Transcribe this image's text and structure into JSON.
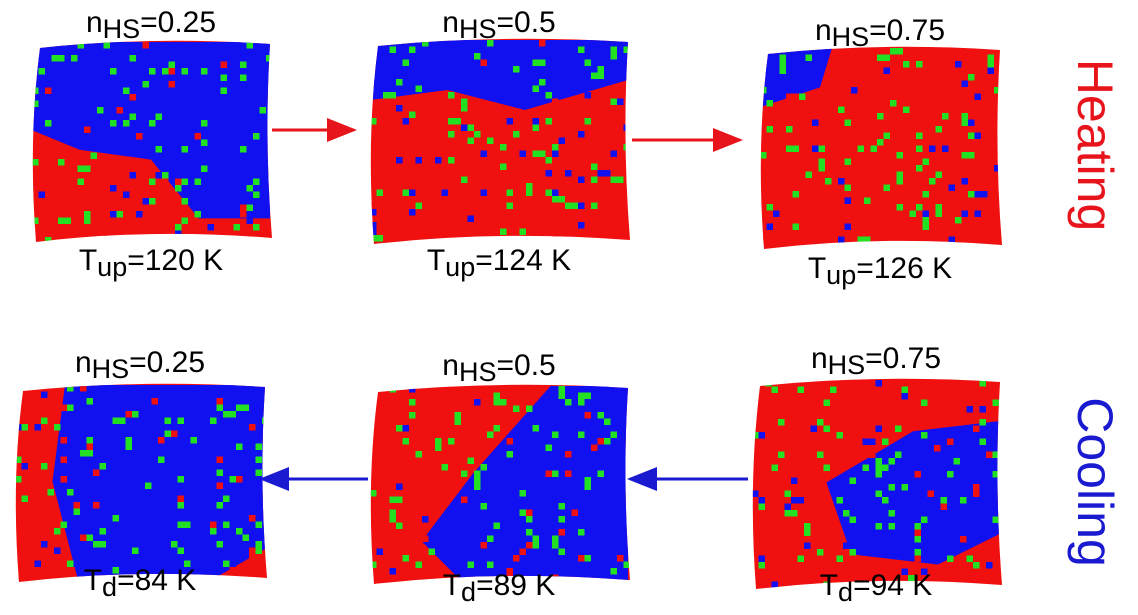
{
  "heating": {
    "label": "Heating",
    "panels": [
      {
        "fraction": {
          "base": "n",
          "sub": "HS",
          "rest": "=0.25"
        },
        "temperature": {
          "base": "T",
          "sub": "up",
          "rest": "=120 K"
        }
      },
      {
        "fraction": {
          "base": "n",
          "sub": "HS",
          "rest": "=0.5"
        },
        "temperature": {
          "base": "T",
          "sub": "up",
          "rest": "=124 K"
        }
      },
      {
        "fraction": {
          "base": "n",
          "sub": "HS",
          "rest": "=0.75"
        },
        "temperature": {
          "base": "T",
          "sub": "up",
          "rest": "=126 K"
        }
      }
    ]
  },
  "cooling": {
    "label": "Cooling",
    "panels": [
      {
        "fraction": {
          "base": "n",
          "sub": "HS",
          "rest": "=0.25"
        },
        "temperature": {
          "base": "T",
          "sub": "d",
          "rest": "=84 K"
        }
      },
      {
        "fraction": {
          "base": "n",
          "sub": "HS",
          "rest": "=0.5"
        },
        "temperature": {
          "base": "T",
          "sub": "d",
          "rest": "=89 K"
        }
      },
      {
        "fraction": {
          "base": "n",
          "sub": "HS",
          "rest": "=0.75"
        },
        "temperature": {
          "base": "T",
          "sub": "d",
          "rest": "=94 K"
        }
      }
    ]
  }
}
